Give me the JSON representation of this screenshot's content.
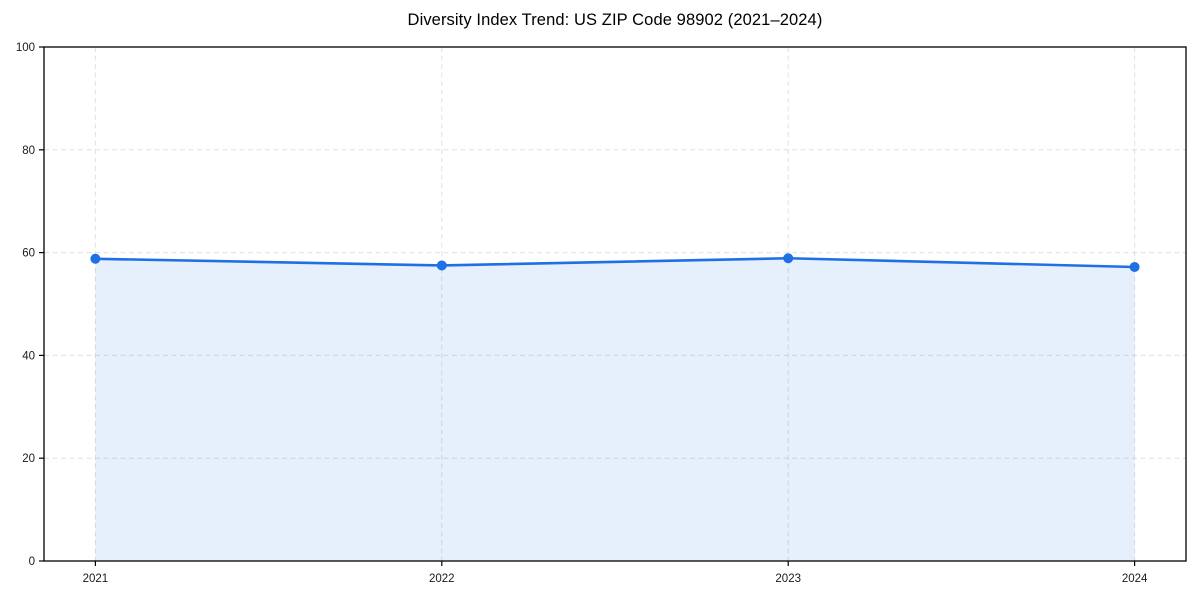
{
  "chart_data": {
    "type": "area",
    "title": "Diversity Index Trend: US ZIP Code 98902 (2021–2024)",
    "categories": [
      "2021",
      "2022",
      "2023",
      "2024"
    ],
    "series": [
      {
        "name": "Diversity Index",
        "values": [
          58.8,
          57.5,
          58.9,
          57.2
        ]
      }
    ],
    "xlabel": "",
    "ylabel": "",
    "ylim": [
      0,
      100
    ],
    "yticks": [
      0,
      20,
      40,
      60,
      80,
      100
    ],
    "grid": true,
    "grid_style": "dashed",
    "legend": "none",
    "colors": {
      "line": "#1f6fe5",
      "marker": "#1f6fe5",
      "fill": "#1f6fe5",
      "fill_opacity": 0.11,
      "grid": "#e0e0e0",
      "spine": "#000000",
      "tick_label": "#1a1a1a",
      "title": "#000000",
      "background": "#ffffff"
    }
  }
}
